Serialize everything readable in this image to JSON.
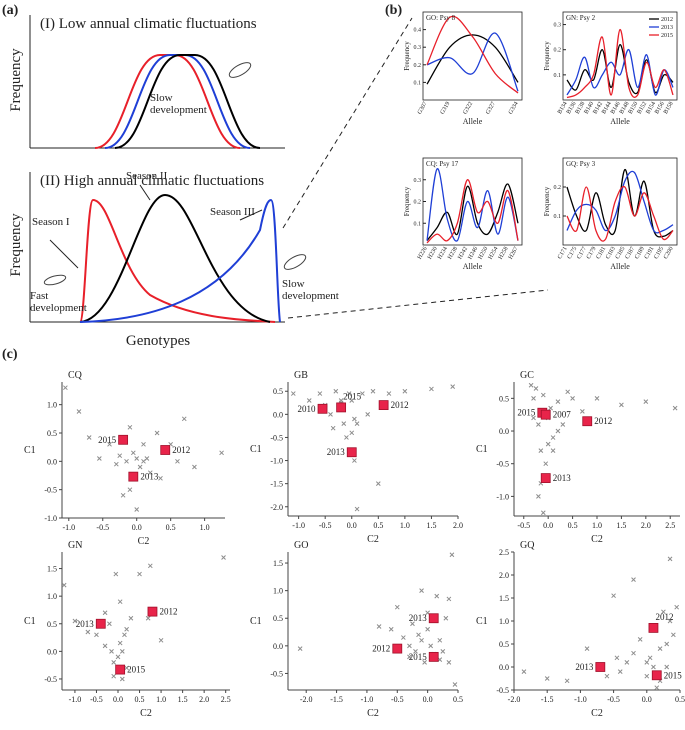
{
  "panel_labels": [
    "(a)",
    "(b)",
    "(c)"
  ],
  "concept": {
    "ylabel": "Frequency",
    "xlabel": "Genotypes",
    "low": {
      "title": "(I) Low annual climatic fluctuations",
      "note": "Slow development"
    },
    "high": {
      "title": "(II) High annual climatic fluctuations",
      "season1": "Season I",
      "season2": "Season II",
      "season3": "Season III",
      "fast": "Fast development",
      "slow": "Slow development"
    }
  },
  "chart_data": [
    {
      "type": "line",
      "title": "GO: Psy 8",
      "xlabel": "Allele",
      "ylabel": "Frequency",
      "categories": [
        "G307",
        "G319",
        "G322",
        "G327",
        "G334"
      ],
      "series": [
        {
          "name": "2012",
          "color": "#000000",
          "values": [
            0.09,
            0.3,
            0.37,
            0.3,
            0.1
          ]
        },
        {
          "name": "2013",
          "color": "#1f3fd6",
          "values": [
            0.2,
            0.24,
            0.15,
            0.38,
            0.05
          ]
        },
        {
          "name": "2015",
          "color": "#e8202a",
          "values": [
            0.2,
            0.47,
            0.36,
            0.15,
            0.04
          ]
        }
      ],
      "ylim": [
        0,
        0.5
      ],
      "yticks": [
        0.1,
        0.2,
        0.3,
        0.4
      ]
    },
    {
      "type": "line",
      "title": "GN: Psy 2",
      "xlabel": "Allele",
      "ylabel": "Frequency",
      "categories": [
        "B134",
        "B136",
        "B138",
        "B140",
        "B142",
        "B144",
        "B146",
        "B148",
        "B150",
        "B152",
        "B154",
        "B156",
        "B158"
      ],
      "series": [
        {
          "name": "2012",
          "color": "#000000",
          "values": [
            0.08,
            0.04,
            0.12,
            0.08,
            0.2,
            0.05,
            0.22,
            0.07,
            0.03,
            0.16,
            0.03,
            0.1,
            0.07
          ]
        },
        {
          "name": "2013",
          "color": "#1f3fd6",
          "values": [
            0.02,
            0.08,
            0.17,
            0.05,
            0.1,
            0.15,
            0.1,
            0.2,
            0.05,
            0.18,
            0.02,
            0.12,
            0.05
          ]
        },
        {
          "name": "2015",
          "color": "#e8202a",
          "values": [
            0.01,
            0.02,
            0.05,
            0.1,
            0.25,
            0.02,
            0.28,
            0.05,
            0.02,
            0.15,
            0.05,
            0.12,
            0.02
          ]
        }
      ],
      "ylim": [
        0,
        0.35
      ],
      "yticks": [
        0.1,
        0.2,
        0.3
      ],
      "legend": "upper right"
    },
    {
      "type": "line",
      "title": "CQ: Psy 17",
      "xlabel": "Allele",
      "ylabel": "Frequency",
      "categories": [
        "H226",
        "H230",
        "H234",
        "H238",
        "H242",
        "H246",
        "H250",
        "H254",
        "H258",
        "H267"
      ],
      "series": [
        {
          "name": "2012",
          "color": "#000000",
          "values": [
            0.02,
            0.08,
            0.15,
            0.05,
            0.27,
            0.1,
            0.05,
            0.15,
            0.28,
            0.1
          ]
        },
        {
          "name": "2013",
          "color": "#1f3fd6",
          "values": [
            0.02,
            0.35,
            0.12,
            0.02,
            0.2,
            0.08,
            0.25,
            0.05,
            0.22,
            0.02
          ]
        },
        {
          "name": "2015",
          "color": "#e8202a",
          "values": [
            0.01,
            0.05,
            0.02,
            0.1,
            0.3,
            0.15,
            0.2,
            0.1,
            0.25,
            0.02
          ]
        }
      ],
      "ylim": [
        0,
        0.4
      ],
      "yticks": [
        0.1,
        0.2,
        0.3
      ]
    },
    {
      "type": "line",
      "title": "GQ: Psy 3",
      "xlabel": "Allele",
      "ylabel": "Frequency",
      "categories": [
        "C171",
        "C175",
        "C177",
        "C179",
        "C181",
        "C183",
        "C185",
        "C187",
        "C189",
        "C191",
        "C195",
        "C200"
      ],
      "series": [
        {
          "name": "2012",
          "color": "#000000",
          "values": [
            0.2,
            0.1,
            0.05,
            0.18,
            0.07,
            0.05,
            0.26,
            0.1,
            0.22,
            0.05,
            0.03,
            0.05
          ]
        },
        {
          "name": "2013",
          "color": "#1f3fd6",
          "values": [
            0.05,
            0.12,
            0.14,
            0.12,
            0.05,
            0.1,
            0.22,
            0.25,
            0.15,
            0.05,
            0.05,
            0.07
          ]
        },
        {
          "name": "2015",
          "color": "#e8202a",
          "values": [
            0.1,
            0.05,
            0.2,
            0.05,
            0.02,
            0.15,
            0.2,
            0.1,
            0.18,
            0.1,
            0.02,
            0.05
          ]
        }
      ],
      "ylim": [
        0,
        0.3
      ],
      "yticks": [
        0.1,
        0.2
      ]
    },
    {
      "type": "scatter",
      "title": "CQ",
      "xlabel": "C2",
      "ylabel": "C1",
      "xlim": [
        -1.1,
        1.3
      ],
      "xticks": [
        {
          "value": -1,
          "label": "-1.0"
        },
        -0.5,
        {
          "value": 0,
          "label": "0.0"
        },
        0.5,
        {
          "value": 1,
          "label": "1.0"
        }
      ],
      "ylim": [
        -1.0,
        1.4
      ],
      "yticks": [
        {
          "value": -1,
          "label": "-1.0"
        },
        -0.5,
        {
          "value": 0,
          "label": "0.0"
        },
        0.5,
        {
          "value": 1,
          "label": "1.0"
        }
      ],
      "series": [
        {
          "color": "#8c8c8c",
          "marker": "x",
          "x": [
            -1.05,
            -0.85,
            -0.7,
            -0.55,
            -0.4,
            -0.3,
            -0.25,
            -0.15,
            -0.1,
            -0.05,
            0,
            0.05,
            0.1,
            0.15,
            0.2,
            0.3,
            0.35,
            0.5,
            0.6,
            0.7,
            0.85,
            1.25,
            -0.2,
            0.0,
            -0.1,
            0.1
          ],
          "y": [
            1.3,
            0.88,
            0.42,
            0.05,
            0.3,
            -0.05,
            0.1,
            0.0,
            -0.5,
            0.15,
            0.05,
            -0.1,
            0.0,
            0.05,
            -0.2,
            0.5,
            -0.3,
            0.3,
            0.0,
            0.75,
            -0.1,
            0.15,
            -0.6,
            -0.85,
            0.6,
            0.3
          ]
        },
        {
          "color": "#e8244a",
          "marker": "square",
          "labels": [
            "2015",
            "2012",
            "2013"
          ],
          "x": [
            -0.2,
            0.42,
            -0.05
          ],
          "y": [
            0.38,
            0.2,
            -0.27
          ]
        }
      ]
    },
    {
      "type": "scatter",
      "title": "GB",
      "xlabel": "C2",
      "ylabel": "C1",
      "xlim": [
        -1.2,
        2.0
      ],
      "xticks": [
        {
          "value": -1,
          "label": "-1.0"
        },
        -0.5,
        {
          "value": 0,
          "label": "0.0"
        },
        0.5,
        {
          "value": 1,
          "label": "1.0"
        },
        1.5,
        {
          "value": 2,
          "label": "2.0"
        }
      ],
      "ylim": [
        -2.2,
        0.7
      ],
      "yticks": [
        {
          "value": -2,
          "label": "-2.0"
        },
        -1.5,
        {
          "value": -1,
          "label": "-1.0"
        },
        -0.5,
        {
          "value": 0,
          "label": "0.0"
        },
        0.5
      ],
      "series": [
        {
          "color": "#8c8c8c",
          "marker": "x",
          "x": [
            -1.1,
            -0.8,
            -0.6,
            -0.5,
            -0.4,
            -0.35,
            -0.3,
            -0.2,
            -0.15,
            -0.1,
            -0.05,
            0,
            0.05,
            0.1,
            0.2,
            0.3,
            0.4,
            0.5,
            0.7,
            1.0,
            1.5,
            1.9,
            -0.2,
            0.0,
            0.05,
            0.1
          ],
          "y": [
            0.45,
            0.3,
            0.45,
            0.2,
            0.0,
            -0.3,
            0.5,
            0.3,
            -0.2,
            -0.5,
            0.45,
            -0.4,
            -1.0,
            -2.05,
            0.45,
            0.0,
            0.5,
            -1.5,
            0.45,
            0.5,
            0.55,
            0.6,
            0.25,
            0.3,
            -0.1,
            -0.2
          ]
        },
        {
          "color": "#e8244a",
          "marker": "square",
          "labels": [
            "2010",
            "2015",
            "2012",
            "2013"
          ],
          "x": [
            -0.55,
            -0.2,
            0.6,
            0.0
          ],
          "y": [
            0.12,
            0.15,
            0.2,
            -0.82
          ]
        }
      ]
    },
    {
      "type": "scatter",
      "title": "GC",
      "xlabel": "C2",
      "ylabel": "C1",
      "xlim": [
        -0.7,
        2.7
      ],
      "xticks": [
        -0.5,
        {
          "value": 0,
          "label": "0.0"
        },
        0.5,
        {
          "value": 1,
          "label": "1.0"
        },
        1.5,
        {
          "value": 2,
          "label": "2.0"
        },
        2.5
      ],
      "ylim": [
        -1.3,
        0.75
      ],
      "yticks": [
        {
          "value": -1,
          "label": "-1.0"
        },
        -0.5,
        {
          "value": 0,
          "label": "0.0"
        },
        0.5
      ],
      "series": [
        {
          "color": "#8c8c8c",
          "marker": "x",
          "x": [
            -0.35,
            -0.3,
            -0.25,
            -0.2,
            -0.15,
            -0.1,
            -0.05,
            0,
            0.05,
            0.1,
            0.2,
            0.3,
            0.4,
            0.5,
            0.7,
            1.0,
            1.5,
            2.0,
            2.6,
            -0.2,
            -0.1,
            0.0,
            -0.3,
            0.1,
            0.2,
            -0.15
          ],
          "y": [
            0.7,
            0.5,
            0.65,
            0.1,
            -0.3,
            0.55,
            -0.5,
            0.2,
            0.35,
            -0.1,
            0.45,
            0.1,
            0.6,
            0.5,
            0.3,
            0.5,
            0.4,
            0.45,
            0.35,
            -1.0,
            -1.25,
            -0.2,
            0.2,
            -0.3,
            0.0,
            -0.8
          ]
        },
        {
          "color": "#e8244a",
          "marker": "square",
          "labels": [
            "2015",
            "2007",
            "2012",
            "2013"
          ],
          "x": [
            -0.12,
            -0.05,
            0.8,
            -0.05
          ],
          "y": [
            0.28,
            0.25,
            0.15,
            -0.72
          ]
        }
      ]
    },
    {
      "type": "scatter",
      "title": "GN",
      "xlabel": "C2",
      "ylabel": "C1",
      "xlim": [
        -1.3,
        2.6
      ],
      "xticks": [
        {
          "value": -1,
          "label": "-1.0"
        },
        -0.5,
        {
          "value": 0,
          "label": "0.0"
        },
        0.5,
        {
          "value": 1,
          "label": "1.0"
        },
        1.5,
        {
          "value": 2,
          "label": "2.0"
        },
        2.5
      ],
      "ylim": [
        -0.7,
        1.8
      ],
      "yticks": [
        -0.5,
        {
          "value": 0,
          "label": "0.0"
        },
        0.5,
        {
          "value": 1,
          "label": "1.0"
        },
        1.5
      ],
      "series": [
        {
          "color": "#8c8c8c",
          "marker": "x",
          "x": [
            -1.25,
            -1.0,
            -0.7,
            -0.5,
            -0.3,
            -0.2,
            -0.15,
            -0.1,
            -0.05,
            0,
            0.05,
            0.1,
            0.15,
            0.2,
            0.3,
            0.5,
            0.7,
            0.75,
            1.0,
            2.45,
            -0.1,
            0.0,
            0.1,
            -0.3,
            0.2,
            0.05
          ],
          "y": [
            1.2,
            0.55,
            0.35,
            0.3,
            0.7,
            0.5,
            0.0,
            -0.2,
            1.4,
            -0.1,
            0.15,
            -0.5,
            0.3,
            -0.3,
            0.6,
            1.4,
            0.6,
            1.55,
            0.2,
            1.7,
            -0.45,
            -0.35,
            0.0,
            0.1,
            0.4,
            0.9
          ]
        },
        {
          "color": "#e8244a",
          "marker": "square",
          "labels": [
            "2013",
            "2012",
            "2015"
          ],
          "x": [
            -0.4,
            0.8,
            0.05
          ],
          "y": [
            0.5,
            0.72,
            -0.33
          ]
        }
      ]
    },
    {
      "type": "scatter",
      "title": "GO",
      "xlabel": "C2",
      "ylabel": "C1",
      "xlim": [
        -2.3,
        0.5
      ],
      "xticks": [
        {
          "value": -2,
          "label": "-2.0"
        },
        -1.5,
        {
          "value": -1,
          "label": "-1.0"
        },
        -0.5,
        {
          "value": 0,
          "label": "0.0"
        },
        0.5
      ],
      "ylim": [
        -0.8,
        1.7
      ],
      "yticks": [
        -0.5,
        {
          "value": 0,
          "label": "0.0"
        },
        0.5,
        {
          "value": 1,
          "label": "1.0"
        },
        1.5
      ],
      "series": [
        {
          "color": "#8c8c8c",
          "marker": "x",
          "x": [
            -2.1,
            -0.8,
            -0.6,
            -0.5,
            -0.4,
            -0.3,
            -0.25,
            -0.2,
            -0.15,
            -0.1,
            -0.05,
            0,
            0.05,
            0.1,
            0.15,
            0.2,
            0.25,
            0.3,
            0.35,
            0.4,
            0.45,
            -0.3,
            0.0,
            0.2,
            0.35,
            -0.1
          ],
          "y": [
            -0.05,
            0.35,
            0.3,
            0.7,
            0.15,
            0.0,
            0.4,
            -0.1,
            0.2,
            0.1,
            -0.3,
            0.3,
            0.0,
            -0.15,
            0.9,
            0.1,
            -0.1,
            0.5,
            -0.3,
            1.65,
            -0.7,
            -0.2,
            0.6,
            -0.25,
            0.85,
            1.0
          ]
        },
        {
          "color": "#e8244a",
          "marker": "square",
          "labels": [
            "2013",
            "2012",
            "2015"
          ],
          "x": [
            0.1,
            -0.5,
            0.1
          ],
          "y": [
            0.5,
            -0.05,
            -0.2
          ]
        }
      ]
    },
    {
      "type": "scatter",
      "title": "GQ",
      "xlabel": "C2",
      "ylabel": "C1",
      "xlim": [
        -2.0,
        0.5
      ],
      "xticks": [
        {
          "value": -2,
          "label": "-2.0"
        },
        -1.5,
        {
          "value": -1,
          "label": "-1.0"
        },
        -0.5,
        {
          "value": 0,
          "label": "0.0"
        },
        0.5
      ],
      "ylim": [
        -0.5,
        2.5
      ],
      "yticks": [
        -0.5,
        {
          "value": 0,
          "label": "0.0"
        },
        0.5,
        {
          "value": 1,
          "label": "1.0"
        },
        1.5,
        {
          "value": 2,
          "label": "2.0"
        },
        2.5
      ],
      "series": [
        {
          "color": "#8c8c8c",
          "marker": "x",
          "x": [
            -1.85,
            -1.5,
            -1.2,
            -0.9,
            -0.6,
            -0.5,
            -0.4,
            -0.3,
            -0.2,
            -0.1,
            0,
            0.05,
            0.1,
            0.15,
            0.2,
            0.25,
            0.3,
            0.35,
            0.4,
            0.45,
            -0.2,
            0.3,
            -0.45,
            0.0,
            0.2,
            0.35
          ],
          "y": [
            -0.1,
            -0.25,
            -0.3,
            0.4,
            -0.2,
            1.55,
            -0.1,
            0.1,
            0.3,
            0.6,
            -0.2,
            0.2,
            0.0,
            -0.45,
            0.4,
            1.2,
            0.0,
            2.35,
            0.7,
            1.3,
            1.9,
            0.5,
            0.2,
            0.1,
            -0.3,
            1.0
          ]
        },
        {
          "color": "#e8244a",
          "marker": "square",
          "labels": [
            "2012",
            "2013",
            "2015"
          ],
          "x": [
            0.1,
            -0.7,
            0.15
          ],
          "y": [
            0.85,
            0.0,
            -0.18
          ]
        }
      ]
    }
  ]
}
